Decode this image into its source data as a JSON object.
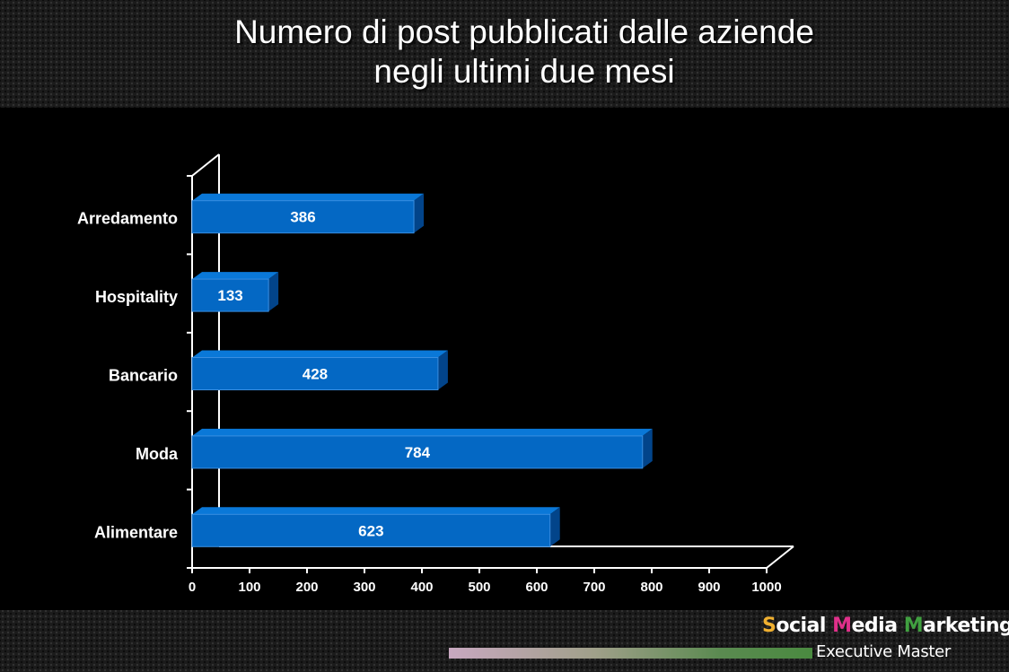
{
  "title_lines": [
    "Numero di post pubblicati dalle aziende",
    "negli ultimi due mesi"
  ],
  "brand": {
    "line1_parts": [
      {
        "text": "S",
        "color": "#f0b030"
      },
      {
        "text": "ocial ",
        "color": "#ffffff"
      },
      {
        "text": "M",
        "color": "#e0308a"
      },
      {
        "text": "edia ",
        "color": "#ffffff"
      },
      {
        "text": "M",
        "color": "#40a040"
      },
      {
        "text": "arketing",
        "color": "#ffffff"
      }
    ],
    "line2": "Executive Master"
  },
  "chart_data": {
    "type": "bar",
    "orientation": "horizontal",
    "categories": [
      "Arredamento",
      "Hospitality",
      "Bancario",
      "Moda",
      "Alimentare"
    ],
    "values": [
      386,
      133,
      428,
      784,
      623
    ],
    "xlim": [
      0,
      1000
    ],
    "xticks": [
      0,
      100,
      200,
      300,
      400,
      500,
      600,
      700,
      800,
      900,
      1000
    ],
    "data_labels": true,
    "colors": {
      "bar_front": "#0468c4",
      "bar_top": "#0a78d8",
      "bar_side": "#02448a",
      "axis": "#ffffff",
      "text": "#ffffff"
    }
  }
}
